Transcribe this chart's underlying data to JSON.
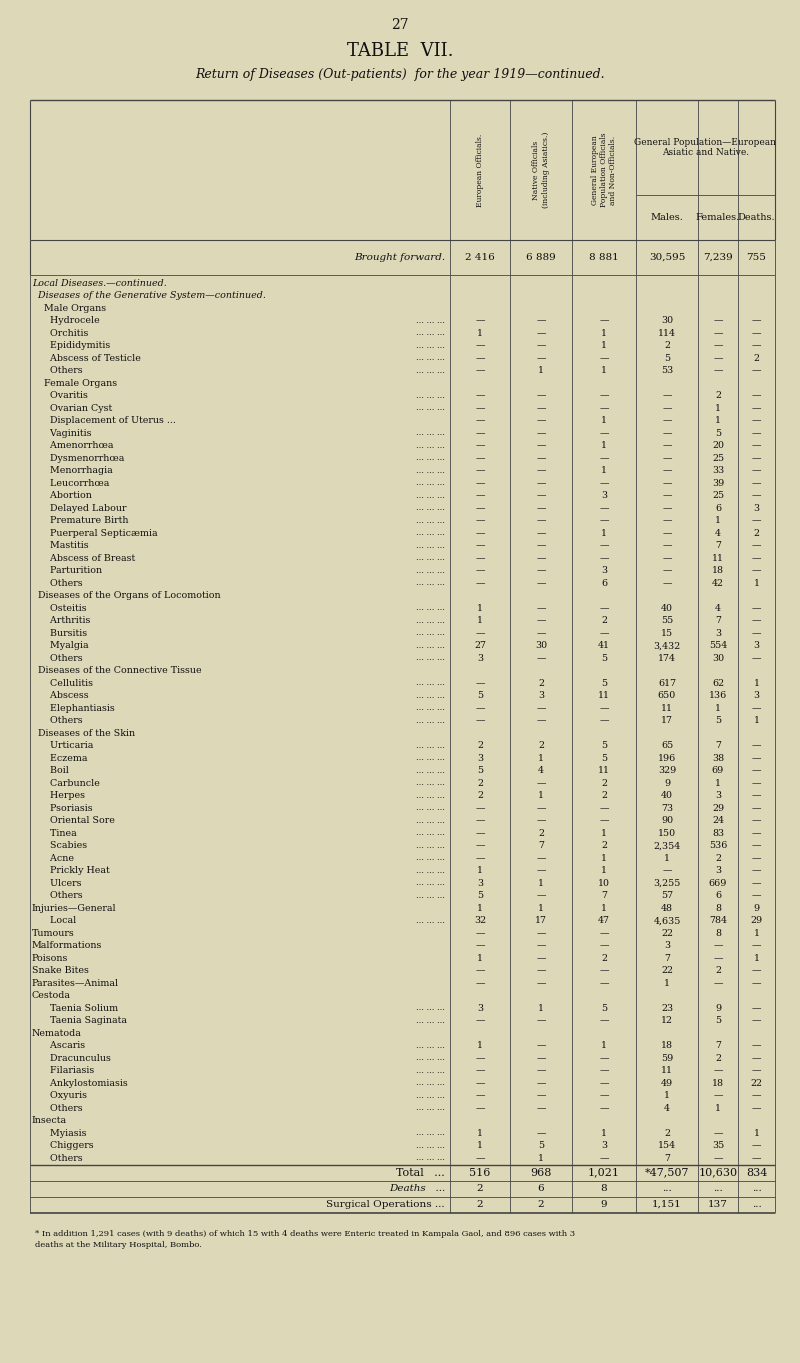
{
  "page_number": "27",
  "title1": "TABLE  VII.",
  "title2": "Return of Diseases (Out-patients)  for the year 1919—continued.",
  "col_headers": [
    "European Officials.",
    "Native Officials\n(including Asiatics.)",
    "General European\nPopulation Officials\nand Non-Officials.",
    "Males.",
    "Females.",
    "Deaths."
  ],
  "col_headers_group": "General Population—European\nAsiatic and Native.",
  "brought_forward": {
    "label": "Brought forward.",
    "values": [
      "2 416",
      "6 889",
      "8 881",
      "30,595",
      "7,239",
      "755"
    ]
  },
  "rows": [
    {
      "label": "Local Diseases.—continued.",
      "indent": 0,
      "italic": true,
      "values": [
        "",
        "",
        "",
        "",
        "",
        ""
      ],
      "dots": false
    },
    {
      "label": "  Diseases of the Generative System—continued.",
      "indent": 0,
      "italic": true,
      "values": [
        "",
        "",
        "",
        "",
        "",
        ""
      ],
      "dots": false
    },
    {
      "label": "    Male Organs",
      "indent": 0,
      "italic": false,
      "values": [
        "",
        "",
        "",
        "",
        "",
        ""
      ],
      "dots": false
    },
    {
      "label": "      Hydrocele",
      "indent": 0,
      "italic": false,
      "values": [
        "—",
        "—",
        "—",
        "30",
        "—",
        "—"
      ],
      "dots": true
    },
    {
      "label": "      Orchitis",
      "indent": 0,
      "italic": false,
      "values": [
        "1",
        "—",
        "1",
        "114",
        "—",
        "—"
      ],
      "dots": true
    },
    {
      "label": "      Epididymitis",
      "indent": 0,
      "italic": false,
      "values": [
        "—",
        "—",
        "1",
        "2",
        "—",
        "—"
      ],
      "dots": true
    },
    {
      "label": "      Abscess of Testicle",
      "indent": 0,
      "italic": false,
      "values": [
        "—",
        "—",
        "—",
        "5",
        "—",
        "2"
      ],
      "dots": true
    },
    {
      "label": "      Others",
      "indent": 0,
      "italic": false,
      "values": [
        "—",
        "1",
        "1",
        "53",
        "—",
        "—"
      ],
      "dots": true
    },
    {
      "label": "    Female Organs",
      "indent": 0,
      "italic": false,
      "values": [
        "",
        "",
        "",
        "",
        "",
        ""
      ],
      "dots": false
    },
    {
      "label": "      Ovaritis",
      "indent": 0,
      "italic": false,
      "values": [
        "—",
        "—",
        "—",
        "—",
        "2",
        "—"
      ],
      "dots": true
    },
    {
      "label": "      Ovarian Cyst",
      "indent": 0,
      "italic": false,
      "values": [
        "—",
        "—",
        "—",
        "—",
        "1",
        "—"
      ],
      "dots": true
    },
    {
      "label": "      Displacement of Uterus ...",
      "indent": 0,
      "italic": false,
      "values": [
        "—",
        "—",
        "1",
        "—",
        "1",
        "—"
      ],
      "dots": false
    },
    {
      "label": "      Vaginitis",
      "indent": 0,
      "italic": false,
      "values": [
        "—",
        "—",
        "—",
        "—",
        "5",
        "—"
      ],
      "dots": true
    },
    {
      "label": "      Amenorrhœa",
      "indent": 0,
      "italic": false,
      "values": [
        "—",
        "—",
        "1",
        "—",
        "20",
        "—"
      ],
      "dots": true
    },
    {
      "label": "      Dysmenorrhœa",
      "indent": 0,
      "italic": false,
      "values": [
        "—",
        "—",
        "—",
        "—",
        "25",
        "—"
      ],
      "dots": true
    },
    {
      "label": "      Menorrhagia",
      "indent": 0,
      "italic": false,
      "values": [
        "—",
        "—",
        "1",
        "—",
        "33",
        "—"
      ],
      "dots": true
    },
    {
      "label": "      Leucorrhœa",
      "indent": 0,
      "italic": false,
      "values": [
        "—",
        "—",
        "—",
        "—",
        "39",
        "—"
      ],
      "dots": true
    },
    {
      "label": "      Abortion",
      "indent": 0,
      "italic": false,
      "values": [
        "—",
        "—",
        "3",
        "—",
        "25",
        "—"
      ],
      "dots": true
    },
    {
      "label": "      Delayed Labour",
      "indent": 0,
      "italic": false,
      "values": [
        "—",
        "—",
        "—",
        "—",
        "6",
        "3"
      ],
      "dots": true
    },
    {
      "label": "      Premature Birth",
      "indent": 0,
      "italic": false,
      "values": [
        "—",
        "—",
        "—",
        "—",
        "1",
        "—"
      ],
      "dots": true
    },
    {
      "label": "      Puerperal Septicæmia",
      "indent": 0,
      "italic": false,
      "values": [
        "—",
        "—",
        "1",
        "—",
        "4",
        "2"
      ],
      "dots": true
    },
    {
      "label": "      Mastitis",
      "indent": 0,
      "italic": false,
      "values": [
        "—",
        "—",
        "—",
        "—",
        "7",
        "—"
      ],
      "dots": true
    },
    {
      "label": "      Abscess of Breast",
      "indent": 0,
      "italic": false,
      "values": [
        "—",
        "—",
        "—",
        "—",
        "11",
        "—"
      ],
      "dots": true
    },
    {
      "label": "      Parturition",
      "indent": 0,
      "italic": false,
      "values": [
        "—",
        "—",
        "3",
        "—",
        "18",
        "—"
      ],
      "dots": true
    },
    {
      "label": "      Others",
      "indent": 0,
      "italic": false,
      "values": [
        "—",
        "—",
        "6",
        "—",
        "42",
        "1"
      ],
      "dots": true
    },
    {
      "label": "  Diseases of the Organs of Locomotion",
      "indent": 0,
      "italic": false,
      "values": [
        "",
        "",
        "",
        "",
        "",
        ""
      ],
      "dots": false
    },
    {
      "label": "      Osteitis",
      "indent": 0,
      "italic": false,
      "values": [
        "1",
        "—",
        "—",
        "40",
        "4",
        "—"
      ],
      "dots": true
    },
    {
      "label": "      Arthritis",
      "indent": 0,
      "italic": false,
      "values": [
        "1",
        "—",
        "2",
        "55",
        "7",
        "—"
      ],
      "dots": true
    },
    {
      "label": "      Bursitis",
      "indent": 0,
      "italic": false,
      "values": [
        "—",
        "—",
        "—",
        "15",
        "3",
        "—"
      ],
      "dots": true
    },
    {
      "label": "      Myalgia",
      "indent": 0,
      "italic": false,
      "values": [
        "27",
        "30",
        "41",
        "3,432",
        "554",
        "3"
      ],
      "dots": true
    },
    {
      "label": "      Others",
      "indent": 0,
      "italic": false,
      "values": [
        "3",
        "—",
        "5",
        "174",
        "30",
        "—"
      ],
      "dots": true
    },
    {
      "label": "  Diseases of the Connective Tissue",
      "indent": 0,
      "italic": false,
      "values": [
        "",
        "",
        "",
        "",
        "",
        ""
      ],
      "dots": false
    },
    {
      "label": "      Cellulitis",
      "indent": 0,
      "italic": false,
      "values": [
        "—",
        "2",
        "5",
        "617",
        "62",
        "1"
      ],
      "dots": true
    },
    {
      "label": "      Abscess",
      "indent": 0,
      "italic": false,
      "values": [
        "5",
        "3",
        "11",
        "650",
        "136",
        "3"
      ],
      "dots": true
    },
    {
      "label": "      Elephantiasis",
      "indent": 0,
      "italic": false,
      "values": [
        "—",
        "—",
        "—",
        "11",
        "1",
        "—"
      ],
      "dots": true
    },
    {
      "label": "      Others",
      "indent": 0,
      "italic": false,
      "values": [
        "—",
        "—",
        "—",
        "17",
        "5",
        "1"
      ],
      "dots": true
    },
    {
      "label": "  Diseases of the Skin",
      "indent": 0,
      "italic": false,
      "values": [
        "",
        "",
        "",
        "",
        "",
        ""
      ],
      "dots": false
    },
    {
      "label": "      Urticaria",
      "indent": 0,
      "italic": false,
      "values": [
        "2",
        "2",
        "5",
        "65",
        "7",
        "—"
      ],
      "dots": true
    },
    {
      "label": "      Eczema",
      "indent": 0,
      "italic": false,
      "values": [
        "3",
        "1",
        "5",
        "196",
        "38",
        "—"
      ],
      "dots": true
    },
    {
      "label": "      Boil",
      "indent": 0,
      "italic": false,
      "values": [
        "5",
        "4",
        "11",
        "329",
        "69",
        "—"
      ],
      "dots": true
    },
    {
      "label": "      Carbuncle",
      "indent": 0,
      "italic": false,
      "values": [
        "2",
        "—",
        "2",
        "9",
        "1",
        "—"
      ],
      "dots": true
    },
    {
      "label": "      Herpes",
      "indent": 0,
      "italic": false,
      "values": [
        "2",
        "1",
        "2",
        "40",
        "3",
        "—"
      ],
      "dots": true
    },
    {
      "label": "      Psoriasis",
      "indent": 0,
      "italic": false,
      "values": [
        "—",
        "—",
        "—",
        "73",
        "29",
        "—"
      ],
      "dots": true
    },
    {
      "label": "      Oriental Sore",
      "indent": 0,
      "italic": false,
      "values": [
        "—",
        "—",
        "—",
        "90",
        "24",
        "—"
      ],
      "dots": true
    },
    {
      "label": "      Tinea",
      "indent": 0,
      "italic": false,
      "values": [
        "—",
        "2",
        "1",
        "150",
        "83",
        "—"
      ],
      "dots": true
    },
    {
      "label": "      Scabies",
      "indent": 0,
      "italic": false,
      "values": [
        "—",
        "7",
        "2",
        "2,354",
        "536",
        "—"
      ],
      "dots": true
    },
    {
      "label": "      Acne",
      "indent": 0,
      "italic": false,
      "values": [
        "—",
        "—",
        "1",
        "1",
        "2",
        "—"
      ],
      "dots": true
    },
    {
      "label": "      Prickly Heat",
      "indent": 0,
      "italic": false,
      "values": [
        "1",
        "—",
        "1",
        "—",
        "3",
        "—"
      ],
      "dots": true
    },
    {
      "label": "      Ulcers",
      "indent": 0,
      "italic": false,
      "values": [
        "3",
        "1",
        "10",
        "3,255",
        "669",
        "—"
      ],
      "dots": true
    },
    {
      "label": "      Others",
      "indent": 0,
      "italic": false,
      "values": [
        "5",
        "—",
        "7",
        "57",
        "6",
        "—"
      ],
      "dots": true
    },
    {
      "label": "Injuries—General",
      "indent": 0,
      "italic": false,
      "values": [
        "1",
        "1",
        "1",
        "48",
        "8",
        "9"
      ],
      "dots": false
    },
    {
      "label": "      Local",
      "indent": 0,
      "italic": false,
      "values": [
        "32",
        "17",
        "47",
        "4,635",
        "784",
        "29"
      ],
      "dots": true
    },
    {
      "label": "Tumours",
      "indent": 0,
      "italic": false,
      "values": [
        "—",
        "—",
        "—",
        "22",
        "8",
        "1"
      ],
      "dots": false
    },
    {
      "label": "Malformations",
      "indent": 0,
      "italic": false,
      "values": [
        "—",
        "—",
        "—",
        "3",
        "—",
        "—"
      ],
      "dots": false
    },
    {
      "label": "Poisons",
      "indent": 0,
      "italic": false,
      "values": [
        "1",
        "—",
        "2",
        "7",
        "—",
        "1"
      ],
      "dots": false
    },
    {
      "label": "Snake Bites",
      "indent": 0,
      "italic": false,
      "values": [
        "—",
        "—",
        "—",
        "22",
        "2",
        "—"
      ],
      "dots": false
    },
    {
      "label": "Parasites—Animal",
      "indent": 0,
      "italic": false,
      "values": [
        "—",
        "—",
        "—",
        "1",
        "—",
        "—"
      ],
      "dots": false
    },
    {
      "label": "Cestoda",
      "indent": 0,
      "italic": false,
      "values": [
        "",
        "",
        "",
        "",
        "",
        ""
      ],
      "dots": false
    },
    {
      "label": "      Taenia Solium",
      "indent": 0,
      "italic": false,
      "values": [
        "3",
        "1",
        "5",
        "23",
        "9",
        "—"
      ],
      "dots": true
    },
    {
      "label": "      Taenia Saginata",
      "indent": 0,
      "italic": false,
      "values": [
        "—",
        "—",
        "—",
        "12",
        "5",
        "—"
      ],
      "dots": true
    },
    {
      "label": "Nematoda",
      "indent": 0,
      "italic": false,
      "values": [
        "",
        "",
        "",
        "",
        "",
        ""
      ],
      "dots": false
    },
    {
      "label": "      Ascaris",
      "indent": 0,
      "italic": false,
      "values": [
        "1",
        "—",
        "1",
        "18",
        "7",
        "—"
      ],
      "dots": true
    },
    {
      "label": "      Dracunculus",
      "indent": 0,
      "italic": false,
      "values": [
        "—",
        "—",
        "—",
        "59",
        "2",
        "—"
      ],
      "dots": true
    },
    {
      "label": "      Filariasis",
      "indent": 0,
      "italic": false,
      "values": [
        "—",
        "—",
        "—",
        "11",
        "—",
        "—"
      ],
      "dots": true
    },
    {
      "label": "      Ankylostomiasis",
      "indent": 0,
      "italic": false,
      "values": [
        "—",
        "—",
        "—",
        "49",
        "18",
        "22"
      ],
      "dots": true
    },
    {
      "label": "      Oxyuris",
      "indent": 0,
      "italic": false,
      "values": [
        "—",
        "—",
        "—",
        "1",
        "—",
        "—"
      ],
      "dots": true
    },
    {
      "label": "      Others",
      "indent": 0,
      "italic": false,
      "values": [
        "—",
        "—",
        "—",
        "4",
        "1",
        "—"
      ],
      "dots": true
    },
    {
      "label": "Insecta",
      "indent": 0,
      "italic": false,
      "values": [
        "",
        "",
        "",
        "",
        "",
        ""
      ],
      "dots": false
    },
    {
      "label": "      Myiasis",
      "indent": 0,
      "italic": false,
      "values": [
        "1",
        "—",
        "1",
        "2",
        "—",
        "1"
      ],
      "dots": true
    },
    {
      "label": "      Chiggers",
      "indent": 0,
      "italic": false,
      "values": [
        "1",
        "5",
        "3",
        "154",
        "35",
        "—"
      ],
      "dots": true
    },
    {
      "label": "      Others",
      "indent": 0,
      "italic": false,
      "values": [
        "—",
        "1",
        "—",
        "7",
        "—",
        "—"
      ],
      "dots": true
    }
  ],
  "total_row": {
    "label": "Total",
    "values": [
      "516",
      "968",
      "1,021",
      "*47,507",
      "10,630",
      "834"
    ]
  },
  "deaths_row": {
    "label": "Deaths",
    "values": [
      "2",
      "6",
      "8",
      "...",
      "...",
      "..."
    ]
  },
  "surgical_row": {
    "label": "Surgical Operations ...",
    "values": [
      "2",
      "2",
      "9",
      "1,151",
      "137",
      "..."
    ]
  },
  "footnote": "* In addition 1,291 cases (with 9 deaths) of which 15 with 4 deaths were Enteric treated in Kampala Gaol, and 896 cases with 3\ndeaths at the Military Hospital, Bombo.",
  "bg_color": "#ddd8b8",
  "text_color": "#111111",
  "line_color": "#444444"
}
